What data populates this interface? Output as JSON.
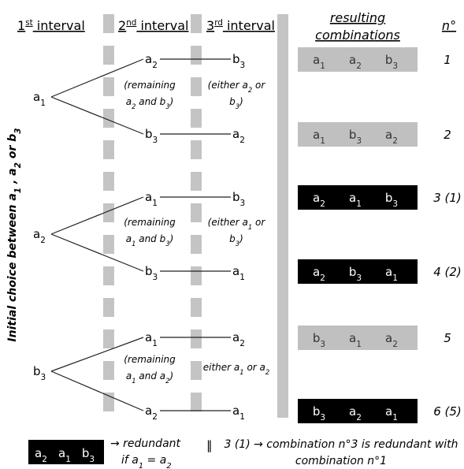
{
  "headers": {
    "interval1": "1st interval",
    "interval2": "2nd interval",
    "interval3": "3rd interval",
    "resulting_line1": "resulting",
    "resulting_line2": "combinations",
    "number": "n°"
  },
  "side_label": "Initial choice between a1 , a2 or b3",
  "first_choices": [
    "a1",
    "a2",
    "b3"
  ],
  "second_choices": [
    "a2",
    "b3",
    "a1",
    "b3",
    "a1",
    "a2"
  ],
  "third_choices": [
    "b3",
    "a2",
    "b3",
    "a1",
    "a2",
    "a1"
  ],
  "remaining_notes": [
    [
      "(remaining",
      "a2 and b3)"
    ],
    [
      "(remaining",
      "a1 and b3)"
    ],
    [
      "(remaining",
      "a1 and a2)"
    ]
  ],
  "either_notes": [
    [
      "(either a2 or",
      "b3)"
    ],
    [
      "(either a1 or",
      "b3)"
    ],
    [
      "either a1 or a2"
    ]
  ],
  "combinations": [
    {
      "items": [
        "a1",
        "a2",
        "b3"
      ],
      "number": "1",
      "redundant": false
    },
    {
      "items": [
        "a1",
        "b3",
        "a2"
      ],
      "number": "2",
      "redundant": false
    },
    {
      "items": [
        "a2",
        "a1",
        "b3"
      ],
      "number": "3 (1)",
      "redundant": true
    },
    {
      "items": [
        "a2",
        "b3",
        "a1"
      ],
      "number": "4 (2)",
      "redundant": true
    },
    {
      "items": [
        "b3",
        "a1",
        "a2"
      ],
      "number": "5",
      "redundant": false
    },
    {
      "items": [
        "b3",
        "a2",
        "a1"
      ],
      "number": "6 (5)",
      "redundant": true
    }
  ],
  "legend": {
    "example_items": [
      "a2",
      "a1",
      "b3"
    ],
    "redundant_text": "→ redundant",
    "condition_text": "if a1 = a2",
    "separator": "‖",
    "explanation_line1": "3 (1) → combination n°3 is redundant with",
    "explanation_line2": "combination n°1"
  },
  "colors": {
    "dashed_bar": "#c4c4c4",
    "solid_bar": "#c4c4c4",
    "normal_combo_bg": "#c0c0c0",
    "normal_combo_text": "#333333",
    "redundant_combo_bg": "#000000",
    "redundant_combo_text": "#ffffff",
    "line": "#222222"
  }
}
